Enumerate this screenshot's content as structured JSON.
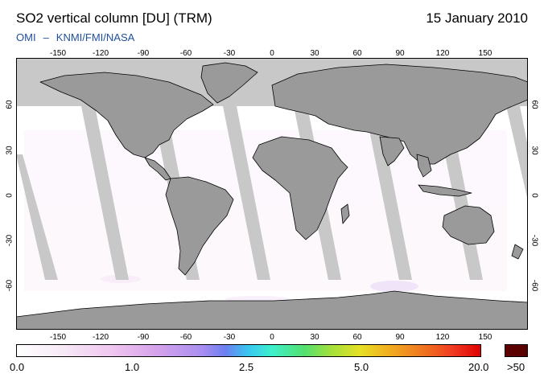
{
  "header": {
    "title": "SO2 vertical column [DU] (TRM)",
    "date": "15 January 2010",
    "credit_left": "OMI",
    "credit_dash": "–",
    "credit_right": "KNMI/FMI/NASA"
  },
  "map": {
    "projection": "equirectangular",
    "lon_ticks": [
      "-150",
      "-120",
      "-90",
      "-60",
      "-30",
      "0",
      "30",
      "60",
      "90",
      "120",
      "150"
    ],
    "lat_ticks": [
      "60",
      "30",
      "0",
      "-30",
      "-60"
    ],
    "colors": {
      "land": "#9a9a9a",
      "polar_night": "#c8c8c8",
      "orbit_gap": "#c8c8c8",
      "coast": "#000000",
      "background": "#ffffff"
    }
  },
  "colorbar": {
    "labels": [
      "0.0",
      "1.0",
      "2.5",
      "5.0",
      "20.0"
    ],
    "overflow_label": ">50",
    "overflow_color": "#5a0000"
  }
}
